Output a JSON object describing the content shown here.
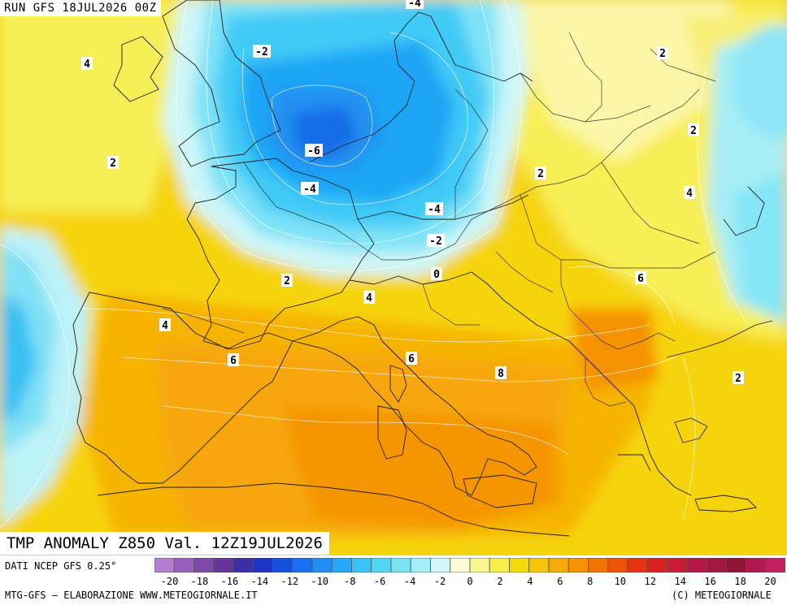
{
  "header": {
    "run_label": "RUN GFS 18JUL2026 00Z"
  },
  "map": {
    "title": "TMP ANOMALY Z850 Val. 12Z19JUL2026",
    "contour_labels": [
      {
        "value": "4"
      },
      {
        "value": "-2"
      },
      {
        "value": "-4"
      },
      {
        "value": "2"
      },
      {
        "value": "2"
      },
      {
        "value": "2"
      },
      {
        "value": "-6"
      },
      {
        "value": "-4"
      },
      {
        "value": "2"
      },
      {
        "value": "4"
      },
      {
        "value": "-4"
      },
      {
        "value": "-2"
      },
      {
        "value": "0"
      },
      {
        "value": "2"
      },
      {
        "value": "4"
      },
      {
        "value": "6"
      },
      {
        "value": "4"
      },
      {
        "value": "6"
      },
      {
        "value": "6"
      },
      {
        "value": "8"
      },
      {
        "value": "2"
      }
    ]
  },
  "footer": {
    "source": "DATI NCEP GFS 0.25°",
    "elaboration": "MTG-GFS — ELABORAZIONE WWW.METEOGIORNALE.IT",
    "copyright": "(C) METEOGIORNALE"
  },
  "legend": {
    "colors": [
      "#b57bd0",
      "#9a60c0",
      "#7e48a8",
      "#663399",
      "#3a2fa5",
      "#1f33c4",
      "#1550dd",
      "#1a6ff0",
      "#1f8ff5",
      "#27a9f7",
      "#37c3f8",
      "#52d6f6",
      "#79e3f6",
      "#a2edf7",
      "#cef6f8",
      "#fbfbd4",
      "#f7f690",
      "#f7ee4c",
      "#f4d90f",
      "#f6c20b",
      "#f6aa06",
      "#f59105",
      "#f07403",
      "#ec5208",
      "#e43412",
      "#d9221f",
      "#c91c34",
      "#b51844",
      "#a31643",
      "#8f1535",
      "#b0194e",
      "#c01f60"
    ],
    "ticks": [
      "-20",
      "-18",
      "-16",
      "-14",
      "-12",
      "-10",
      "-8",
      "-6",
      "-4",
      "-2",
      "0",
      "2",
      "4",
      "6",
      "8",
      "10",
      "12",
      "14",
      "16",
      "18",
      "20"
    ]
  }
}
